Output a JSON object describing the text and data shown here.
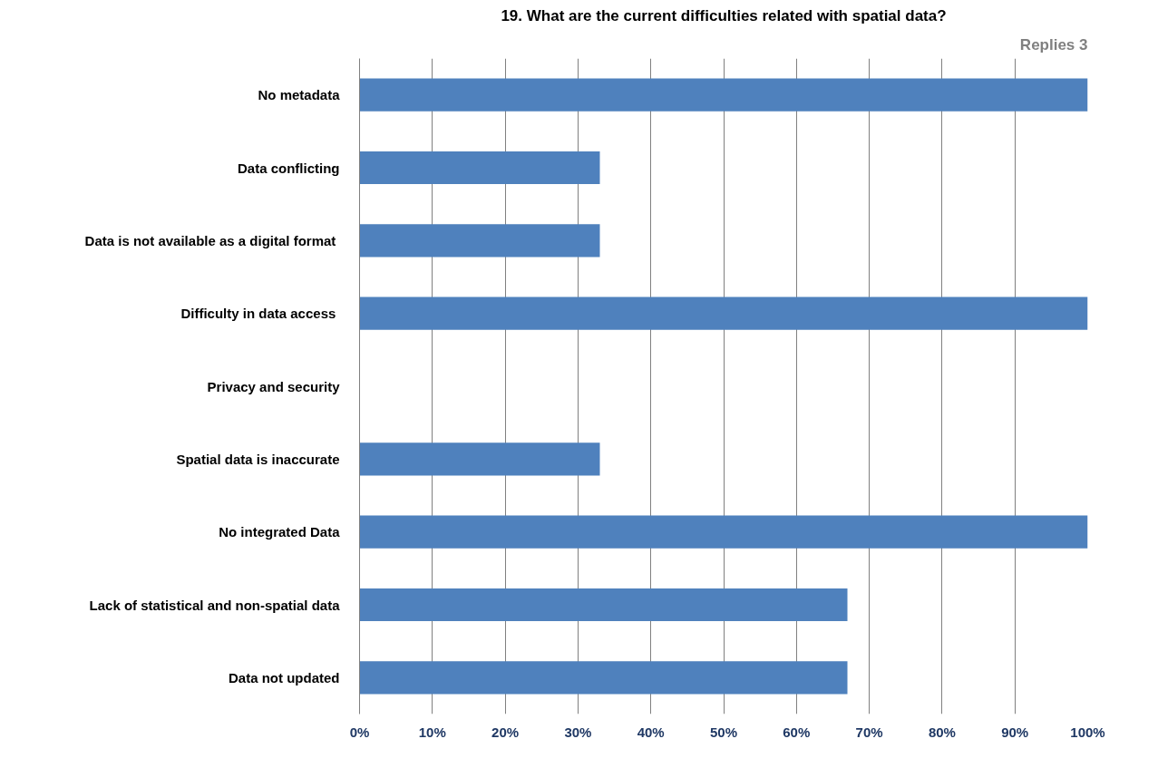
{
  "chart_data": {
    "type": "bar",
    "orientation": "horizontal",
    "title": "19. What are the current difficulties related with spatial data?",
    "categories": [
      "No metadata",
      "Data conflicting",
      "Data is not available  as a digital format",
      "Difficulty in data access ",
      "Privacy and security",
      "Spatial data is inaccurate",
      "No integrated Data",
      "Lack of statistical and non-spatial data",
      "Data not updated"
    ],
    "values": [
      100,
      33,
      33,
      100,
      0,
      33,
      100,
      67,
      67
    ],
    "color": "#4f81bd",
    "xlim": [
      0,
      100
    ],
    "xticks": [
      {
        "value": 0,
        "label": "0%"
      },
      {
        "value": 10,
        "label": "10%"
      },
      {
        "value": 20,
        "label": "20%"
      },
      {
        "value": 30,
        "label": "30%"
      },
      {
        "value": 40,
        "label": "40%"
      },
      {
        "value": 50,
        "label": "50%"
      },
      {
        "value": 60,
        "label": "60%"
      },
      {
        "value": 70,
        "label": "70%"
      },
      {
        "value": 80,
        "label": "80%"
      },
      {
        "value": 90,
        "label": "90%"
      },
      {
        "value": 100,
        "label": "100%"
      }
    ],
    "grid": "x",
    "annotations": [
      "Replies 3"
    ]
  }
}
